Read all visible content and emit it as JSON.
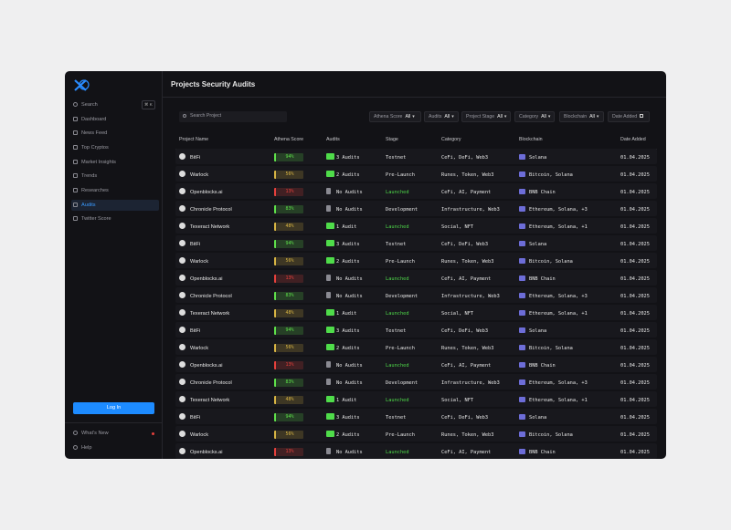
{
  "sidebar": {
    "search": "Search",
    "shortcut": "⌘ K",
    "nav": [
      "Dashboard",
      "News Feed",
      "Top Cryptos",
      "Market Insights",
      "Trends",
      "Researches",
      "Audits",
      "Twitter Score"
    ],
    "login": "Log In",
    "footer": [
      "What's New",
      "Help"
    ]
  },
  "header": {
    "title": "Projects Security Audits"
  },
  "toolbar": {
    "search_placeholder": "Search Project",
    "filters": [
      {
        "label": "Athena Score",
        "value": "All"
      },
      {
        "label": "Audits",
        "value": "All"
      },
      {
        "label": "Project Stage",
        "value": "All"
      },
      {
        "label": "Category",
        "value": "All"
      },
      {
        "label": "Blockchain",
        "value": "All"
      },
      {
        "label": "Date Added"
      }
    ]
  },
  "table": {
    "columns": [
      "Project Name",
      "Athena Score",
      "Audits",
      "Stage",
      "Category",
      "Blockchain",
      "Date Added"
    ],
    "rows": [
      {
        "project": "BitFi",
        "score": "94%",
        "score_color": "#5ee04a",
        "audits": "3 Audits",
        "stage": "Testnet",
        "stage_color": "#e8e8e8",
        "category": "CeFi, DeFi, Web3",
        "blockchain": "Solana",
        "date": "01.04.2025"
      },
      {
        "project": "Warlock",
        "score": "56%",
        "score_color": "#d7b443",
        "audits": "2 Audits",
        "stage": "Pre-Launch",
        "stage_color": "#e8e8e8",
        "category": "Runes, Token, Web3",
        "blockchain": "Bitcoin, Solana",
        "date": "01.04.2025"
      },
      {
        "project": "Openblocks.ai",
        "score": "13%",
        "score_color": "#e5403c",
        "audits": "No Audits",
        "stage": "Launched",
        "stage_color": "#4fdc4a",
        "category": "CeFi, AI, Payment",
        "blockchain": "BNB Chain",
        "date": "01.04.2025"
      },
      {
        "project": "Chronicle Protocol",
        "score": "83%",
        "score_color": "#5ee04a",
        "audits": "No Audits",
        "stage": "Development",
        "stage_color": "#e8e8e8",
        "category": "Infrastructure, Web3",
        "blockchain": "Ethereum, Solana, +3",
        "date": "01.04.2025"
      },
      {
        "project": "Texeract Network",
        "score": "48%",
        "score_color": "#d7b443",
        "audits": "1 Audit",
        "stage": "Launched",
        "stage_color": "#4fdc4a",
        "category": "Social, NFT",
        "blockchain": "Ethereum, Solana, +1",
        "date": "01.04.2025"
      },
      {
        "project": "BitFi",
        "score": "94%",
        "score_color": "#5ee04a",
        "audits": "3 Audits",
        "stage": "Testnet",
        "stage_color": "#e8e8e8",
        "category": "CeFi, DeFi, Web3",
        "blockchain": "Solana",
        "date": "01.04.2025"
      },
      {
        "project": "Warlock",
        "score": "56%",
        "score_color": "#d7b443",
        "audits": "2 Audits",
        "stage": "Pre-Launch",
        "stage_color": "#e8e8e8",
        "category": "Runes, Token, Web3",
        "blockchain": "Bitcoin, Solana",
        "date": "01.04.2025"
      },
      {
        "project": "Openblocks.ai",
        "score": "13%",
        "score_color": "#e5403c",
        "audits": "No Audits",
        "stage": "Launched",
        "stage_color": "#4fdc4a",
        "category": "CeFi, AI, Payment",
        "blockchain": "BNB Chain",
        "date": "01.04.2025"
      },
      {
        "project": "Chronicle Protocol",
        "score": "83%",
        "score_color": "#5ee04a",
        "audits": "No Audits",
        "stage": "Development",
        "stage_color": "#e8e8e8",
        "category": "Infrastructure, Web3",
        "blockchain": "Ethereum, Solana, +3",
        "date": "01.04.2025"
      },
      {
        "project": "Texeract Network",
        "score": "48%",
        "score_color": "#d7b443",
        "audits": "1 Audit",
        "stage": "Launched",
        "stage_color": "#4fdc4a",
        "category": "Social, NFT",
        "blockchain": "Ethereum, Solana, +1",
        "date": "01.04.2025"
      },
      {
        "project": "BitFi",
        "score": "94%",
        "score_color": "#5ee04a",
        "audits": "3 Audits",
        "stage": "Testnet",
        "stage_color": "#e8e8e8",
        "category": "CeFi, DeFi, Web3",
        "blockchain": "Solana",
        "date": "01.04.2025"
      },
      {
        "project": "Warlock",
        "score": "56%",
        "score_color": "#d7b443",
        "audits": "2 Audits",
        "stage": "Pre-Launch",
        "stage_color": "#e8e8e8",
        "category": "Runes, Token, Web3",
        "blockchain": "Bitcoin, Solana",
        "date": "01.04.2025"
      },
      {
        "project": "Openblocks.ai",
        "score": "13%",
        "score_color": "#e5403c",
        "audits": "No Audits",
        "stage": "Launched",
        "stage_color": "#4fdc4a",
        "category": "CeFi, AI, Payment",
        "blockchain": "BNB Chain",
        "date": "01.04.2025"
      },
      {
        "project": "Chronicle Protocol",
        "score": "83%",
        "score_color": "#5ee04a",
        "audits": "No Audits",
        "stage": "Development",
        "stage_color": "#e8e8e8",
        "category": "Infrastructure, Web3",
        "blockchain": "Ethereum, Solana, +3",
        "date": "01.04.2025"
      },
      {
        "project": "Texeract Network",
        "score": "48%",
        "score_color": "#d7b443",
        "audits": "1 Audit",
        "stage": "Launched",
        "stage_color": "#4fdc4a",
        "category": "Social, NFT",
        "blockchain": "Ethereum, Solana, +1",
        "date": "01.04.2025"
      },
      {
        "project": "BitFi",
        "score": "94%",
        "score_color": "#5ee04a",
        "audits": "3 Audits",
        "stage": "Testnet",
        "stage_color": "#e8e8e8",
        "category": "CeFi, DeFi, Web3",
        "blockchain": "Solana",
        "date": "01.04.2025"
      },
      {
        "project": "Warlock",
        "score": "56%",
        "score_color": "#d7b443",
        "audits": "2 Audits",
        "stage": "Pre-Launch",
        "stage_color": "#e8e8e8",
        "category": "Runes, Token, Web3",
        "blockchain": "Bitcoin, Solana",
        "date": "01.04.2025"
      },
      {
        "project": "Openblocks.ai",
        "score": "13%",
        "score_color": "#e5403c",
        "audits": "No Audits",
        "stage": "Launched",
        "stage_color": "#4fdc4a",
        "category": "CeFi, AI, Payment",
        "blockchain": "BNB Chain",
        "date": "01.04.2025"
      }
    ]
  }
}
